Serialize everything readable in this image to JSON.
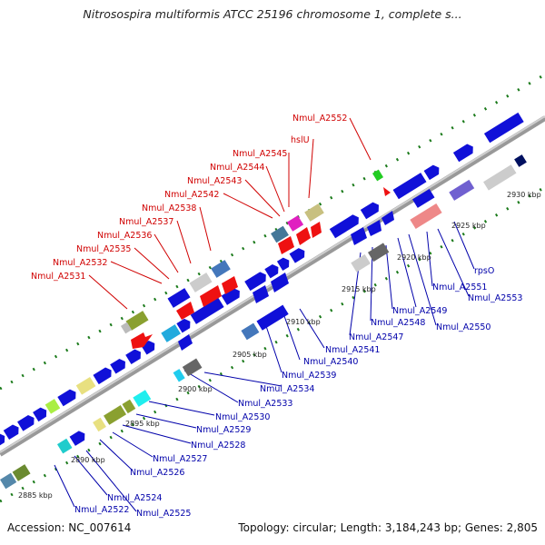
{
  "title": "Nitrosospira multiformis ATCC 25196 chromosome 1, complete s...",
  "accession": "Accession: NC_007614",
  "topology": "Topology: circular; Length: 3,184,243 bp; Genes: 2,805",
  "colors": {
    "upper_labels": "#d00000",
    "lower_labels": "#0000aa",
    "ticks": "#1a7a1a"
  },
  "kbp_labels": [
    "2885 kbp",
    "2890 kbp",
    "2895 kbp",
    "2900 kbp",
    "2905 kbp",
    "2910 kbp",
    "2915 kbp",
    "2920 kbp",
    "2925 kbp",
    "2930 kbp"
  ],
  "upper_labels": [
    "Nmul_A2552",
    "hslU",
    "Nmul_A2545",
    "Nmul_A2544",
    "Nmul_A2543",
    "Nmul_A2542",
    "Nmul_A2538",
    "Nmul_A2537",
    "Nmul_A2536",
    "Nmul_A2535",
    "Nmul_A2532",
    "Nmul_A2531"
  ],
  "lower_labels": [
    "Nmul_A2522",
    "Nmul_A2524",
    "Nmul_A2525",
    "Nmul_A2526",
    "Nmul_A2527",
    "Nmul_A2528",
    "Nmul_A2529",
    "Nmul_A2530",
    "Nmul_A2533",
    "Nmul_A2534",
    "Nmul_A2539",
    "Nmul_A2540",
    "Nmul_A2541",
    "Nmul_A2547",
    "Nmul_A2548",
    "Nmul_A2549",
    "Nmul_A2550",
    "Nmul_A2551",
    "Nmul_A2553",
    "rpsO"
  ]
}
